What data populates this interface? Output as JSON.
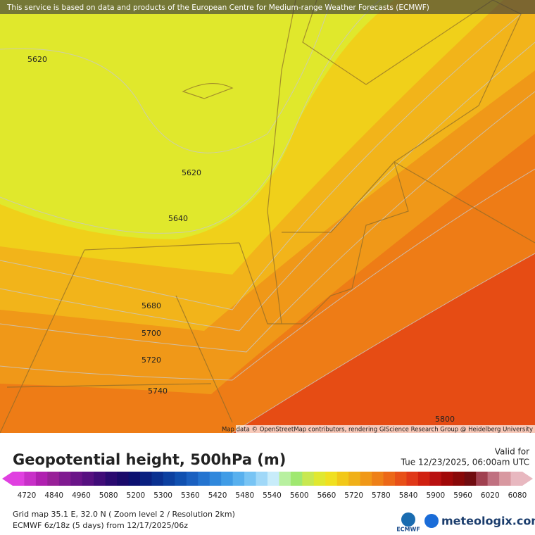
{
  "header": {
    "attribution": "This service is based on data and products of the European Centre for Medium-range Weather Forecasts (ECMWF)"
  },
  "map": {
    "contour_labels": [
      "5620",
      "5620",
      "5640",
      "5680",
      "5700",
      "5720",
      "5740",
      "5800"
    ],
    "credit": "Map data © OpenStreetMap contributors, rendering GIScience Research Group @ Heidelberg University"
  },
  "legend": {
    "title": "Geopotential height, 500hPa (m)",
    "valid_label": "Valid for",
    "valid_time": "Tue 12/23/2025, 06:00am UTC",
    "scale_labels": [
      "4720",
      "4840",
      "4960",
      "5080",
      "5200",
      "5300",
      "5360",
      "5420",
      "5480",
      "5540",
      "5600",
      "5660",
      "5720",
      "5780",
      "5840",
      "5900",
      "5960",
      "6020",
      "6080"
    ],
    "scale_colors": [
      "#e040e0",
      "#c830c8",
      "#b020b0",
      "#982098",
      "#801a90",
      "#6a1488",
      "#561080",
      "#400c78",
      "#2a0a70",
      "#1a0a6a",
      "#0c1070",
      "#0a2080",
      "#0a3090",
      "#0c40a0",
      "#1050b0",
      "#1a60c0",
      "#2474d0",
      "#3088dc",
      "#409ce6",
      "#58b0ee",
      "#78c4f4",
      "#a0d8f8",
      "#c8ecfa",
      "#b8f0a0",
      "#a0e870",
      "#c8e850",
      "#e0e830",
      "#f0e020",
      "#f2c818",
      "#f0b018",
      "#f09818",
      "#ee8018",
      "#ec6818",
      "#e85018",
      "#e03818",
      "#d02010",
      "#b81010",
      "#a00808",
      "#880808",
      "#700c10",
      "#a04050",
      "#c07080",
      "#d898a0",
      "#e8b8c0"
    ],
    "grid_info": "Grid map 35.1 E, 32.0 N ( Zoom level 2 / Resolution 2km)",
    "run_info": "ECMWF 6z/18z (5 days)  from  12/17/2025/06z",
    "ecmwf_logo": "ECMWF",
    "site_logo": "meteologix.com"
  }
}
